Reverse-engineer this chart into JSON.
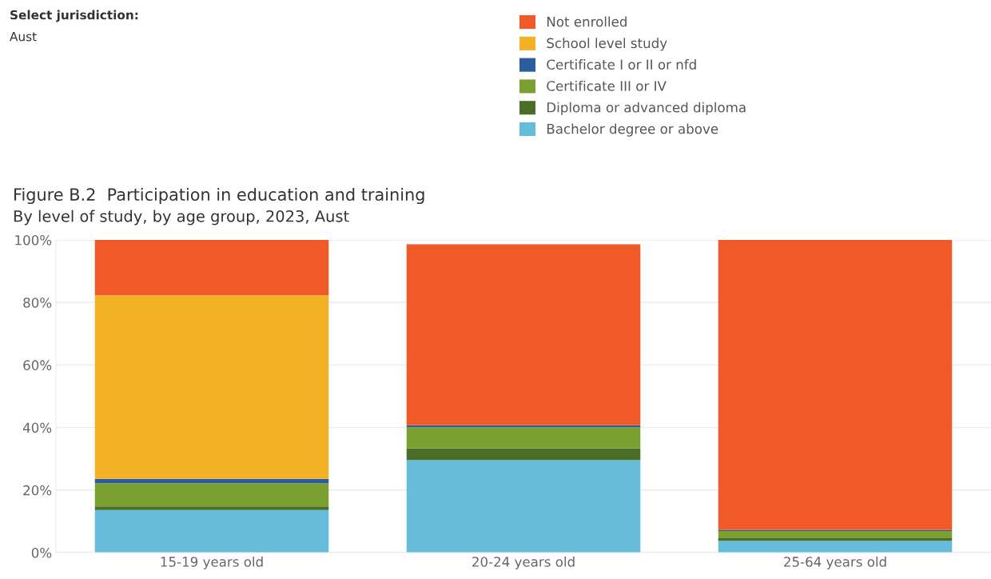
{
  "chart_data": {
    "type": "bar",
    "stacked": true,
    "title": "Figure B.2  Participation in education and training",
    "subtitle": "By level of study, by age group, 2023, Aust",
    "annotations": [
      "Select jurisdiction:",
      "Aust"
    ],
    "categories": [
      "15-19 years old",
      "20-24 years old",
      "25-64 years old"
    ],
    "series": [
      {
        "name": "Bachelor degree or above",
        "color": "#65bcdb",
        "values": [
          13.6,
          29.6,
          3.8
        ]
      },
      {
        "name": "Diploma or advanced diploma",
        "color": "#4a6e28",
        "values": [
          1.2,
          3.7,
          0.8
        ]
      },
      {
        "name": "Certificate III or IV",
        "color": "#79a031",
        "values": [
          7.4,
          6.8,
          2.3
        ]
      },
      {
        "name": "Certificate I or II or nfd",
        "color": "#2b5c9e",
        "values": [
          1.4,
          0.6,
          0.3
        ]
      },
      {
        "name": "School level study",
        "color": "#f3b125",
        "values": [
          58.7,
          null,
          null
        ]
      },
      {
        "name": "Not enrolled",
        "color": "#f05a28",
        "values": [
          17.7,
          57.9,
          92.8
        ]
      }
    ],
    "ylim": [
      0,
      100
    ],
    "yticks": [
      {
        "value": 0,
        "label": "0%"
      },
      {
        "value": 20,
        "label": "20%"
      },
      {
        "value": 40,
        "label": "40%"
      },
      {
        "value": 60,
        "label": "60%"
      },
      {
        "value": 80,
        "label": "80%"
      },
      {
        "value": 100,
        "label": "100%"
      }
    ],
    "grid": "y",
    "legend": "top"
  }
}
